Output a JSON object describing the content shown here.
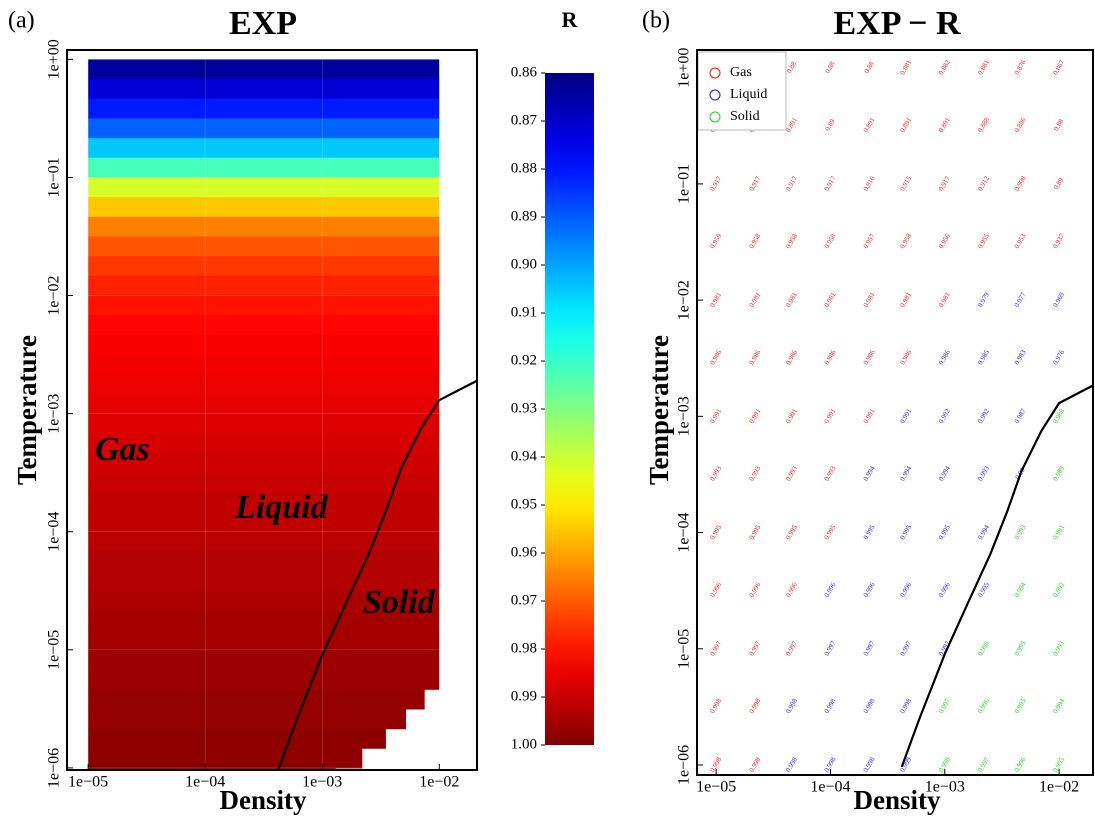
{
  "chart_data": [
    {
      "type": "heatmap",
      "panel_label": "(a)",
      "title": "EXP",
      "xlabel": "Density",
      "ylabel": "Temperature",
      "xscale": "log",
      "yscale": "log",
      "grid": true,
      "xlim": [
        6.6e-06,
        0.021
      ],
      "ylim": [
        9.6e-07,
        1.2
      ],
      "xticks": [
        {
          "value": 1e-05,
          "label": "1e−05"
        },
        {
          "value": 0.0001,
          "label": "1e−04"
        },
        {
          "value": 0.001,
          "label": "1e−03"
        },
        {
          "value": 0.01,
          "label": "1e−02"
        }
      ],
      "yticks": [
        {
          "value": 1,
          "label": "1e+00"
        },
        {
          "value": 0.1,
          "label": "1e−01"
        },
        {
          "value": 0.01,
          "label": "1e−02"
        },
        {
          "value": 0.001,
          "label": "1e−03"
        },
        {
          "value": 0.0001,
          "label": "1e−04"
        },
        {
          "value": 1e-05,
          "label": "1e−05"
        },
        {
          "value": 1e-06,
          "label": "1e−06"
        }
      ],
      "heatmap": {
        "colormap": "jet",
        "x_min": 1e-05,
        "y": [
          1,
          0.681,
          0.464,
          0.316,
          0.215,
          0.147,
          0.1,
          0.0681,
          0.0464,
          0.0316,
          0.0215,
          0.0147,
          0.01,
          0.00681,
          0.00464,
          0.00316,
          0.00215,
          0.00147,
          0.001,
          0.000681,
          0.000464,
          0.000316,
          0.000215,
          0.000147,
          0.0001,
          6.81e-05,
          4.64e-05,
          3.16e-05,
          2.15e-05,
          1.47e-05,
          1e-05,
          6.81e-06,
          4.64e-06,
          3.16e-06,
          2.15e-06,
          1.47e-06,
          1e-06
        ],
        "x_max": [
          0.01,
          0.01,
          0.01,
          0.01,
          0.01,
          0.01,
          0.01,
          0.01,
          0.01,
          0.01,
          0.01,
          0.01,
          0.01,
          0.01,
          0.01,
          0.01,
          0.01,
          0.01,
          0.01,
          0.01,
          0.01,
          0.01,
          0.01,
          0.01,
          0.01,
          0.01,
          0.01,
          0.01,
          0.01,
          0.01,
          0.01,
          0.01,
          0.0075,
          0.0052,
          0.0035,
          0.0022,
          0.0013
        ],
        "values": [
          0.864,
          0.872,
          0.881,
          0.891,
          0.905,
          0.922,
          0.942,
          0.955,
          0.965,
          0.971,
          0.975,
          0.978,
          0.98,
          0.982,
          0.983,
          0.984,
          0.985,
          0.986,
          0.987,
          0.988,
          0.989,
          0.99,
          0.991,
          0.991,
          0.992,
          0.993,
          0.993,
          0.994,
          0.995,
          0.995,
          0.996,
          0.996,
          0.997,
          0.997,
          0.998,
          0.998,
          0.998
        ]
      },
      "colorbar": {
        "label": "R",
        "lim": [
          0.86,
          1.0
        ],
        "ticks": [
          0.86,
          0.87,
          0.88,
          0.89,
          {
            "value": 0.9,
            "label": "0.90"
          },
          0.91,
          0.92,
          0.93,
          0.94,
          0.95,
          0.96,
          0.97,
          0.98,
          0.99,
          {
            "value": 1.0,
            "label": "1.00"
          }
        ]
      },
      "boundary": {
        "color": "#000000",
        "x": [
          0.00042,
          0.0006,
          0.001,
          0.0016,
          0.0025,
          0.0035,
          0.0047,
          0.007,
          0.01,
          0.015,
          0.021
        ],
        "y": [
          9.6e-07,
          2.5e-06,
          9e-06,
          2.5e-05,
          6.5e-05,
          0.00015,
          0.00034,
          0.00075,
          0.0013,
          0.0016,
          0.0019
        ]
      },
      "annotations": [
        "Gas",
        "Liquid",
        "Solid"
      ]
    },
    {
      "type": "scatter",
      "panel_label": "(b)",
      "title": "EXP − R",
      "xlabel": "Density",
      "ylabel": "Temperature",
      "xscale": "log",
      "yscale": "log",
      "grid": false,
      "legend": "upper left",
      "xlim": [
        6.8e-06,
        0.0198
      ],
      "ylim": [
        8.2e-07,
        1.42
      ],
      "xticks": [
        {
          "value": 1e-05,
          "label": "1e−05"
        },
        {
          "value": 0.0001,
          "label": "1e−04"
        },
        {
          "value": 0.001,
          "label": "1e−03"
        },
        {
          "value": 0.01,
          "label": "1e−02"
        }
      ],
      "yticks": [
        {
          "value": 1,
          "label": "1e+00"
        },
        {
          "value": 0.1,
          "label": "1e−01"
        },
        {
          "value": 0.01,
          "label": "1e−02"
        },
        {
          "value": 0.001,
          "label": "1e−03"
        },
        {
          "value": 0.0001,
          "label": "1e−04"
        },
        {
          "value": 1e-05,
          "label": "1e−05"
        },
        {
          "value": 1e-06,
          "label": "1e−06"
        }
      ],
      "series": [
        {
          "name": "Gas",
          "color": "#e8141a",
          "x": [
            1e-05,
            2.2e-05,
            4.6e-05,
            0.0001,
            0.00022,
            0.00046,
            0.001,
            0.0022,
            0.0046,
            0.01,
            1e-05,
            2.2e-05,
            4.6e-05,
            0.0001,
            0.00022,
            0.00046,
            0.001,
            0.0022,
            0.0046,
            0.01,
            1e-05,
            2.2e-05,
            4.6e-05,
            0.0001,
            0.00022,
            0.00046,
            0.001,
            0.0022,
            0.0046,
            0.01,
            1e-05,
            2.2e-05,
            4.6e-05,
            0.0001,
            0.00022,
            0.00046,
            0.001,
            0.0022,
            0.0046,
            0.01,
            1e-05,
            2.2e-05,
            4.6e-05,
            0.0001,
            0.00022,
            0.00046,
            0.001,
            1e-05,
            2.2e-05,
            4.6e-05,
            0.0001,
            0.00022,
            0.00046,
            1e-05,
            2.2e-05,
            4.6e-05,
            0.0001,
            0.00022,
            1e-05,
            2.2e-05,
            4.6e-05,
            0.0001,
            1e-05,
            2.2e-05,
            4.6e-05,
            0.0001,
            1e-05,
            2.2e-05,
            4.6e-05,
            1e-05,
            2.2e-05,
            4.6e-05,
            1e-05,
            2.2e-05,
            1e-05,
            2.2e-05
          ],
          "y": [
            1,
            1,
            1,
            1,
            1,
            1,
            1,
            1,
            1,
            1,
            0.32,
            0.32,
            0.32,
            0.32,
            0.32,
            0.32,
            0.32,
            0.32,
            0.32,
            0.32,
            0.1,
            0.1,
            0.1,
            0.1,
            0.1,
            0.1,
            0.1,
            0.1,
            0.1,
            0.1,
            0.032,
            0.032,
            0.032,
            0.032,
            0.032,
            0.032,
            0.032,
            0.032,
            0.032,
            0.032,
            0.01,
            0.01,
            0.01,
            0.01,
            0.01,
            0.01,
            0.01,
            0.0032,
            0.0032,
            0.0032,
            0.0032,
            0.0032,
            0.0032,
            0.001,
            0.001,
            0.001,
            0.001,
            0.001,
            0.00032,
            0.00032,
            0.00032,
            0.00032,
            0.0001,
            0.0001,
            0.0001,
            0.0001,
            3.2e-05,
            3.2e-05,
            3.2e-05,
            1e-05,
            1e-05,
            1e-05,
            3.2e-06,
            3.2e-06,
            1e-06,
            1e-06
          ],
          "labels": [
            0.879,
            0.879,
            0.88,
            0.88,
            0.88,
            0.881,
            0.882,
            0.881,
            0.876,
            0.867,
            0.891,
            0.891,
            0.891,
            0.89,
            0.891,
            0.891,
            0.891,
            0.888,
            0.886,
            0.88,
            0.917,
            0.917,
            0.917,
            0.917,
            0.916,
            0.915,
            0.917,
            0.912,
            0.908,
            0.89,
            0.959,
            0.958,
            0.958,
            0.958,
            0.957,
            0.958,
            0.956,
            0.955,
            0.953,
            0.937,
            0.981,
            0.981,
            0.981,
            0.981,
            0.981,
            0.981,
            0.981,
            0.986,
            0.986,
            0.986,
            0.986,
            0.986,
            0.986,
            0.991,
            0.991,
            0.991,
            0.991,
            0.991,
            0.993,
            0.993,
            0.993,
            0.993,
            0.995,
            0.995,
            0.995,
            0.995,
            0.996,
            0.996,
            0.996,
            0.997,
            0.997,
            0.997,
            0.998,
            0.998,
            0.998,
            0.998
          ]
        },
        {
          "name": "Liquid",
          "color": "#1a1ae0",
          "x": [
            0.0022,
            0.0046,
            0.01,
            0.001,
            0.0022,
            0.0046,
            0.01,
            0.00046,
            0.001,
            0.0022,
            0.0046,
            0.00022,
            0.00046,
            0.001,
            0.0022,
            0.0046,
            0.00022,
            0.00046,
            0.001,
            0.0022,
            0.0001,
            0.00022,
            0.00046,
            0.001,
            0.0022,
            0.0001,
            0.00022,
            0.00046,
            0.001,
            4.6e-05,
            0.0001,
            0.00022,
            0.00046,
            4.6e-05,
            0.0001,
            0.00022,
            0.00046
          ],
          "y": [
            0.01,
            0.01,
            0.01,
            0.0032,
            0.0032,
            0.0032,
            0.0032,
            0.001,
            0.001,
            0.001,
            0.001,
            0.00032,
            0.00032,
            0.00032,
            0.00032,
            0.00032,
            0.0001,
            0.0001,
            0.0001,
            0.0001,
            3.2e-05,
            3.2e-05,
            3.2e-05,
            3.2e-05,
            3.2e-05,
            1e-05,
            1e-05,
            1e-05,
            1e-05,
            3.2e-06,
            3.2e-06,
            3.2e-06,
            3.2e-06,
            1e-06,
            1e-06,
            1e-06,
            1e-06
          ],
          "labels": [
            0.979,
            0.977,
            0.969,
            0.986,
            0.985,
            0.983,
            0.976,
            0.991,
            0.992,
            0.992,
            0.987,
            0.994,
            0.994,
            0.994,
            0.993,
            0.99,
            0.995,
            0.995,
            0.995,
            0.994,
            0.996,
            0.996,
            0.996,
            0.996,
            0.995,
            0.997,
            0.997,
            0.997,
            0.997,
            0.998,
            0.998,
            0.998,
            0.998,
            0.998,
            0.998,
            0.998,
            0.999
          ]
        },
        {
          "name": "Solid",
          "color": "#1ed21e",
          "x": [
            0.01,
            0.01,
            0.0046,
            0.01,
            0.0046,
            0.01,
            0.0022,
            0.0046,
            0.01,
            0.001,
            0.0022,
            0.0046,
            0.01,
            0.001,
            0.0022,
            0.0046,
            0.01
          ],
          "y": [
            0.001,
            0.00032,
            0.0001,
            0.0001,
            3.2e-05,
            3.2e-05,
            1e-05,
            1e-05,
            1e-05,
            3.2e-06,
            3.2e-06,
            3.2e-06,
            3.2e-06,
            1e-06,
            1e-06,
            1e-06,
            1e-06
          ],
          "labels": [
            0.988,
            0.989,
            0.993,
            0.991,
            0.994,
            0.992,
            0.996,
            0.995,
            0.993,
            0.997,
            0.996,
            0.995,
            0.994,
            0.998,
            0.997,
            0.996,
            0.995
          ]
        }
      ],
      "boundary": {
        "color": "#000000",
        "x": [
          0.00042,
          0.0006,
          0.001,
          0.0016,
          0.0025,
          0.0035,
          0.0047,
          0.007,
          0.01,
          0.015,
          0.021
        ],
        "y": [
          9.6e-07,
          2.5e-06,
          9e-06,
          2.5e-05,
          6.5e-05,
          0.00015,
          0.00034,
          0.00075,
          0.0013,
          0.0016,
          0.0019
        ]
      }
    }
  ]
}
